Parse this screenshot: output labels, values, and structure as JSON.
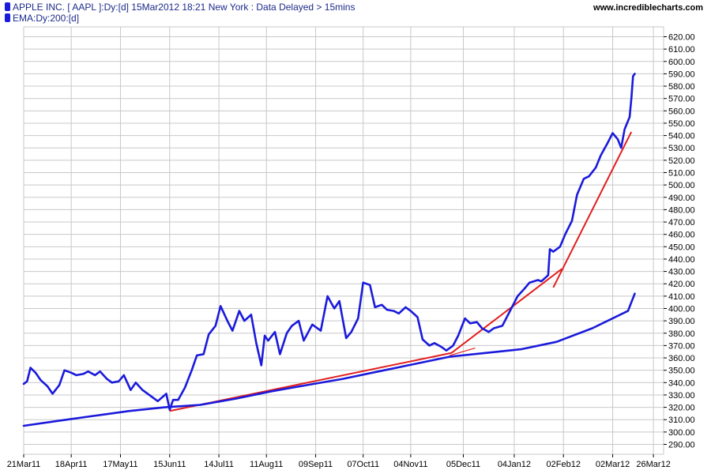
{
  "header": {
    "series1_label": "APPLE INC. [ AAPL ]:Dy:[d]  15Mar2012 18:21 New York : Data Delayed > 15mins",
    "series2_label": "EMA:Dy:200:[d]",
    "site": "www.incrediblecharts.com"
  },
  "colors": {
    "series": "#1a1adc",
    "trendline": "#e21e1e",
    "grid": "#c8c8c8",
    "legend_marker": "#1a1adc"
  },
  "chart_data": {
    "type": "line",
    "title": "",
    "xlabel": "",
    "ylabel": "",
    "ylim": [
      282,
      628
    ],
    "xlim": [
      "2011-03-21",
      "2012-04-01"
    ],
    "grid": true,
    "y_axis_side": "right",
    "x_tick_labels": [
      "21Mar11",
      "18Apr11",
      "17May11",
      "15Jun11",
      "14Jul11",
      "11Aug11",
      "09Sep11",
      "07Oct11",
      "04Nov11",
      "05Dec11",
      "04Jan12",
      "02Feb12",
      "02Mar12",
      "26Mar12"
    ],
    "x_tick_dates": [
      "2011-03-21",
      "2011-04-18",
      "2011-05-17",
      "2011-06-15",
      "2011-07-14",
      "2011-08-11",
      "2011-09-09",
      "2011-10-07",
      "2011-11-04",
      "2011-12-05",
      "2012-01-04",
      "2012-02-02",
      "2012-03-02",
      "2012-03-26"
    ],
    "y_ticks": [
      "290.00",
      "300.00",
      "310.00",
      "320.00",
      "330.00",
      "340.00",
      "350.00",
      "360.00",
      "370.00",
      "380.00",
      "390.00",
      "400.00",
      "410.00",
      "420.00",
      "430.00",
      "440.00",
      "450.00",
      "460.00",
      "470.00",
      "480.00",
      "490.00",
      "500.00",
      "510.00",
      "520.00",
      "530.00",
      "540.00",
      "550.00",
      "560.00",
      "570.00",
      "580.00",
      "590.00",
      "600.00",
      "610.00",
      "620.00"
    ],
    "series": [
      {
        "name": "APPLE INC. [ AAPL ]:Dy:[d]",
        "x": [
          "2011-03-21",
          "2011-03-23",
          "2011-03-25",
          "2011-03-28",
          "2011-03-31",
          "2011-04-04",
          "2011-04-07",
          "2011-04-11",
          "2011-04-14",
          "2011-04-18",
          "2011-04-21",
          "2011-04-25",
          "2011-04-28",
          "2011-05-02",
          "2011-05-05",
          "2011-05-09",
          "2011-05-12",
          "2011-05-16",
          "2011-05-19",
          "2011-05-23",
          "2011-05-26",
          "2011-05-30",
          "2011-06-03",
          "2011-06-08",
          "2011-06-13",
          "2011-06-15",
          "2011-06-17",
          "2011-06-20",
          "2011-06-24",
          "2011-06-28",
          "2011-07-01",
          "2011-07-05",
          "2011-07-08",
          "2011-07-12",
          "2011-07-15",
          "2011-07-19",
          "2011-07-22",
          "2011-07-26",
          "2011-07-29",
          "2011-08-02",
          "2011-08-05",
          "2011-08-08",
          "2011-08-10",
          "2011-08-12",
          "2011-08-16",
          "2011-08-19",
          "2011-08-23",
          "2011-08-26",
          "2011-08-30",
          "2011-09-02",
          "2011-09-07",
          "2011-09-12",
          "2011-09-16",
          "2011-09-20",
          "2011-09-23",
          "2011-09-27",
          "2011-09-30",
          "2011-10-04",
          "2011-10-07",
          "2011-10-11",
          "2011-10-14",
          "2011-10-18",
          "2011-10-21",
          "2011-10-25",
          "2011-10-28",
          "2011-11-01",
          "2011-11-04",
          "2011-11-08",
          "2011-11-11",
          "2011-11-15",
          "2011-11-18",
          "2011-11-22",
          "2011-11-25",
          "2011-11-29",
          "2011-12-02",
          "2011-12-06",
          "2011-12-09",
          "2011-12-13",
          "2011-12-16",
          "2011-12-20",
          "2011-12-23",
          "2011-12-28",
          "2012-01-03",
          "2012-01-06",
          "2012-01-10",
          "2012-01-13",
          "2012-01-18",
          "2012-01-20",
          "2012-01-24",
          "2012-01-25",
          "2012-01-27",
          "2012-01-31",
          "2012-02-03",
          "2012-02-07",
          "2012-02-10",
          "2012-02-14",
          "2012-02-17",
          "2012-02-21",
          "2012-02-24",
          "2012-02-28",
          "2012-03-02",
          "2012-03-05",
          "2012-03-07",
          "2012-03-09",
          "2012-03-12",
          "2012-03-13",
          "2012-03-14",
          "2012-03-15"
        ],
        "values": [
          339,
          341,
          352,
          348,
          342,
          337,
          331,
          338,
          350,
          348,
          346,
          347,
          349,
          346,
          349,
          343,
          340,
          341,
          346,
          334,
          340,
          334,
          330,
          325,
          331,
          318,
          326,
          326,
          336,
          350,
          362,
          363,
          379,
          386,
          402,
          390,
          382,
          398,
          390,
          395,
          372,
          354,
          378,
          374,
          381,
          363,
          380,
          386,
          390,
          374,
          387,
          382,
          410,
          400,
          406,
          376,
          381,
          392,
          421,
          419,
          401,
          403,
          399,
          398,
          396,
          401,
          398,
          393,
          375,
          370,
          372,
          369,
          366,
          370,
          378,
          392,
          388,
          389,
          384,
          381,
          384,
          386,
          402,
          410,
          416,
          421,
          423,
          422,
          427,
          448,
          446,
          450,
          460,
          471,
          492,
          505,
          507,
          514,
          524,
          534,
          542,
          537,
          530,
          545,
          555,
          570,
          588,
          590
        ]
      },
      {
        "name": "EMA:Dy:200:[d]",
        "x": [
          "2011-03-21",
          "2011-04-10",
          "2011-05-01",
          "2011-05-22",
          "2011-06-12",
          "2011-07-03",
          "2011-07-24",
          "2011-08-14",
          "2011-09-04",
          "2011-09-25",
          "2011-10-16",
          "2011-11-06",
          "2011-11-27",
          "2011-12-18",
          "2012-01-08",
          "2012-01-29",
          "2012-02-19",
          "2012-03-11",
          "2012-03-15"
        ],
        "values": [
          305,
          309,
          313,
          317,
          320,
          322,
          327,
          333,
          338,
          343,
          349,
          355,
          361,
          364,
          367,
          373,
          384,
          398,
          412
        ]
      }
    ],
    "trendlines": [
      {
        "x": [
          "2011-06-15",
          "2011-11-28"
        ],
        "values": [
          317,
          364
        ]
      },
      {
        "x": [
          "2011-11-28",
          "2012-02-01"
        ],
        "values": [
          364,
          432
        ]
      },
      {
        "x": [
          "2011-11-27",
          "2011-12-12"
        ],
        "values": [
          362,
          368
        ]
      },
      {
        "x": [
          "2012-01-27",
          "2012-03-13"
        ],
        "values": [
          417,
          543
        ]
      }
    ]
  }
}
